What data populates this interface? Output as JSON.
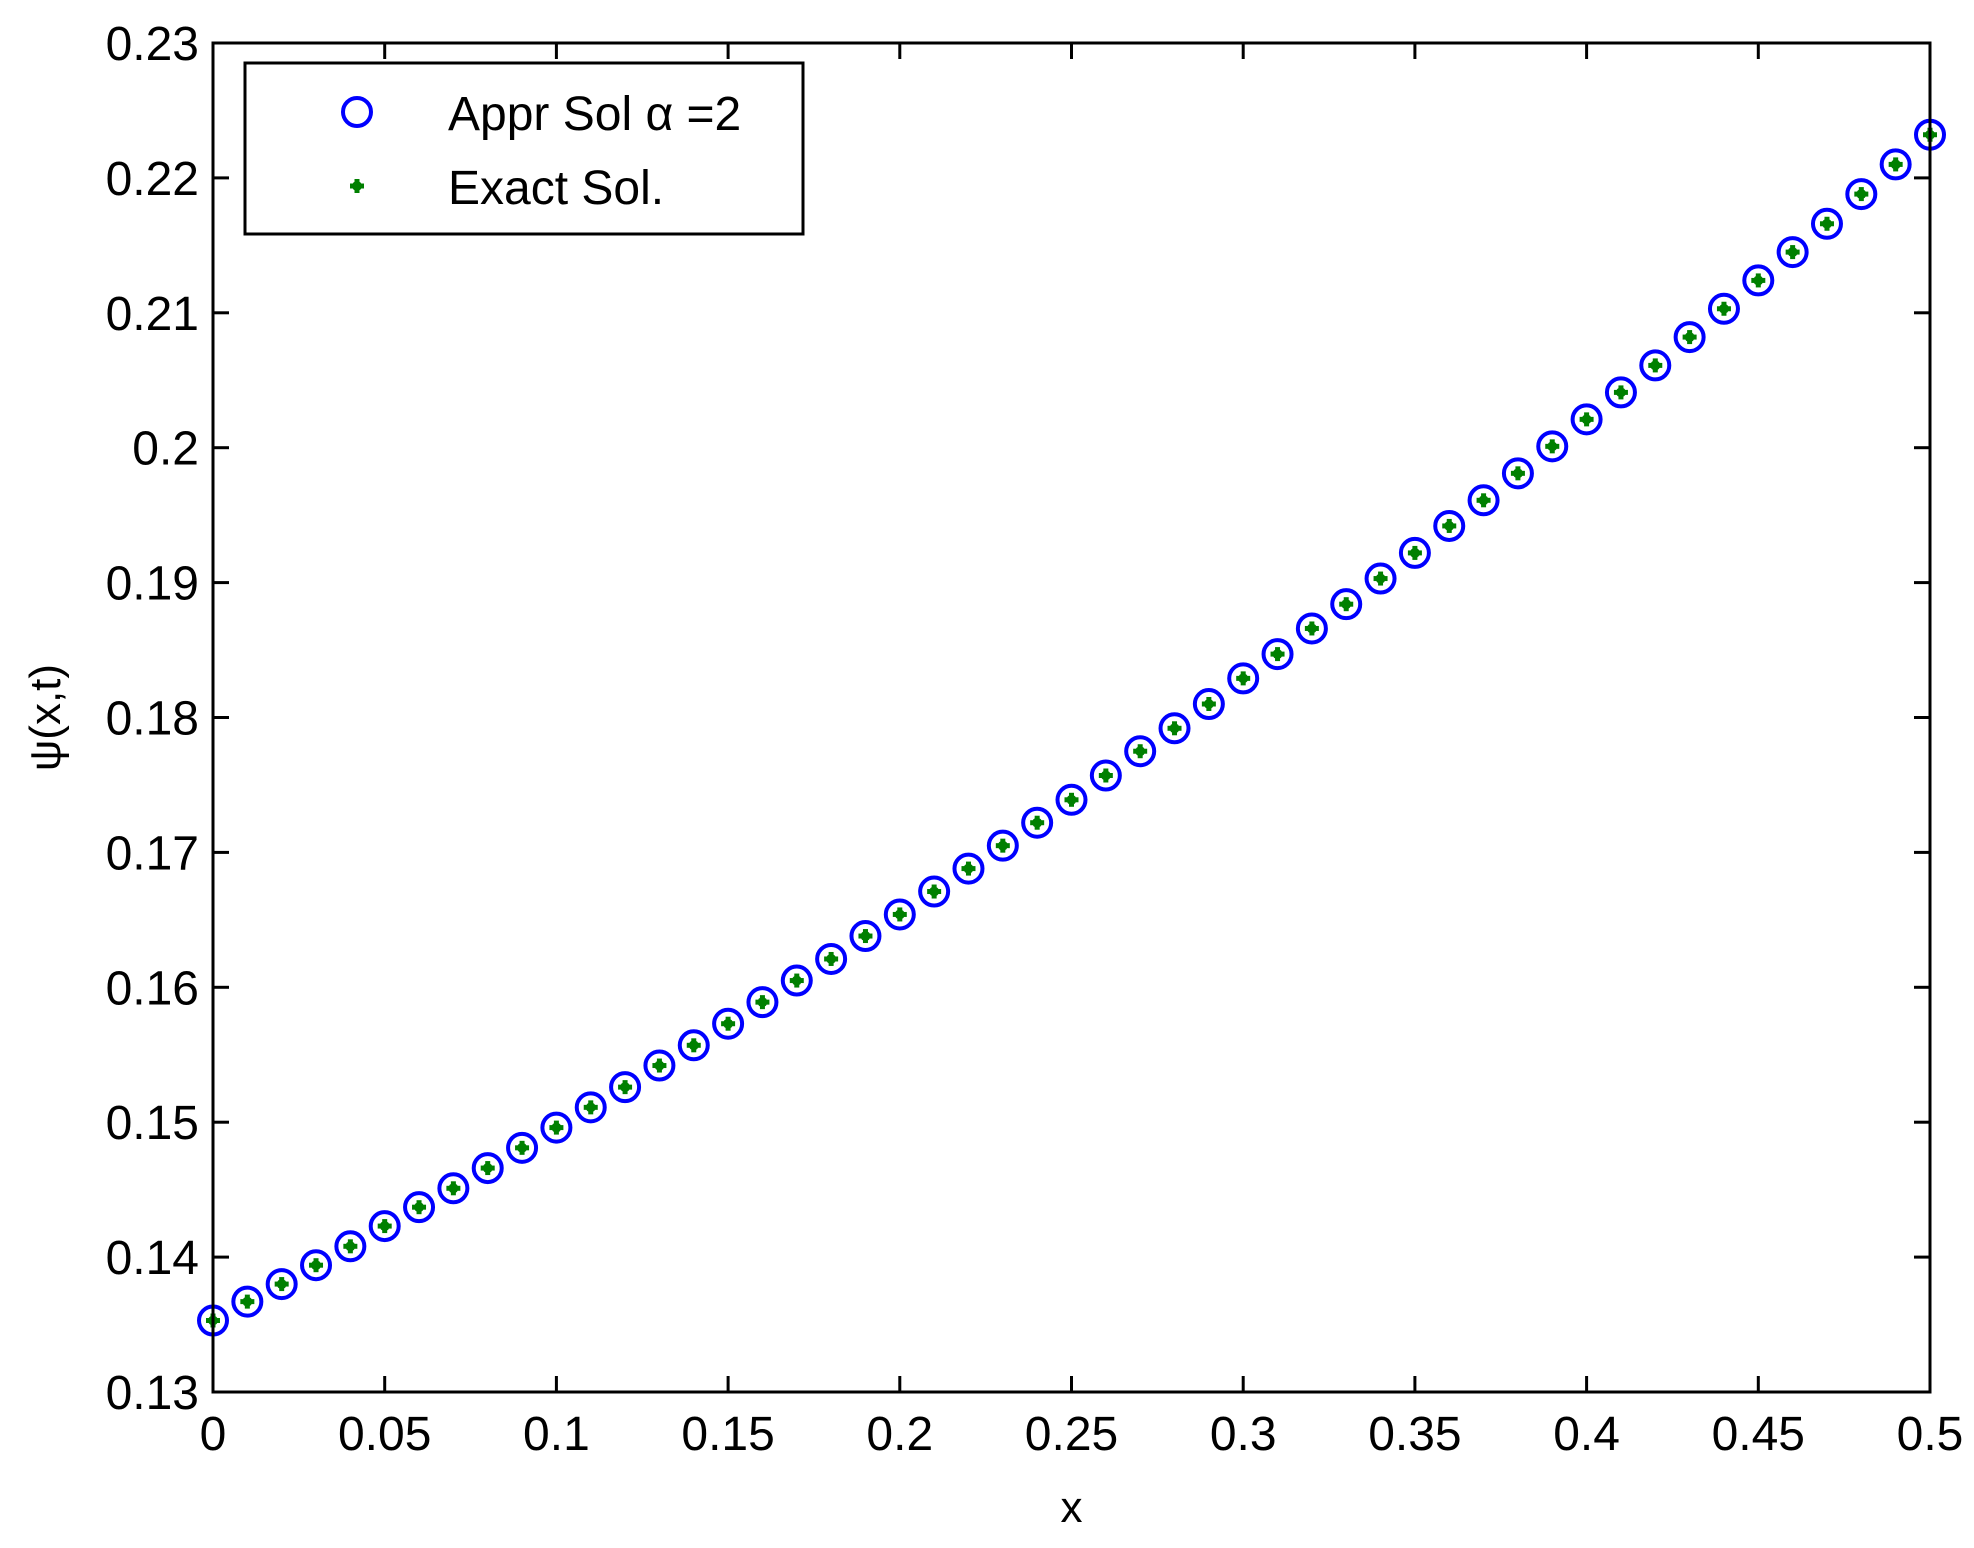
{
  "chart_data": {
    "type": "scatter",
    "xlabel": "x",
    "ylabel": "ψ(x,t)",
    "xlim": [
      0,
      0.5
    ],
    "ylim": [
      0.13,
      0.23
    ],
    "xticks": [
      "0",
      "0.05",
      "0.1",
      "0.15",
      "0.2",
      "0.25",
      "0.3",
      "0.35",
      "0.4",
      "0.45",
      "0.5"
    ],
    "yticks": [
      "0.13",
      "0.14",
      "0.15",
      "0.16",
      "0.17",
      "0.18",
      "0.19",
      "0.2",
      "0.21",
      "0.22",
      "0.23"
    ],
    "grid": false,
    "legend_position": "top-left",
    "x": [
      0,
      0.01,
      0.02,
      0.03,
      0.04,
      0.05,
      0.06,
      0.07,
      0.08,
      0.09,
      0.1,
      0.11,
      0.12,
      0.13,
      0.14,
      0.15,
      0.16,
      0.17,
      0.18,
      0.19,
      0.2,
      0.21,
      0.22,
      0.23,
      0.24,
      0.25,
      0.26,
      0.27,
      0.28,
      0.29,
      0.3,
      0.31,
      0.32,
      0.33,
      0.34,
      0.35,
      0.36,
      0.37,
      0.38,
      0.39,
      0.4,
      0.41,
      0.42,
      0.43,
      0.44,
      0.45,
      0.46,
      0.47,
      0.48,
      0.49,
      0.5
    ],
    "series": [
      {
        "name": "Appr Sol α =2",
        "marker": "circle",
        "color": "#0000ff",
        "values": [
          0.1353,
          0.1367,
          0.138,
          0.1394,
          0.1408,
          0.1423,
          0.1437,
          0.1451,
          0.1466,
          0.1481,
          0.1496,
          0.1511,
          0.1526,
          0.1542,
          0.1557,
          0.1573,
          0.1589,
          0.1605,
          0.1621,
          0.1638,
          0.1654,
          0.1671,
          0.1688,
          0.1705,
          0.1722,
          0.1739,
          0.1757,
          0.1775,
          0.1792,
          0.181,
          0.1829,
          0.1847,
          0.1866,
          0.1884,
          0.1903,
          0.1922,
          0.1942,
          0.1961,
          0.1981,
          0.2001,
          0.2021,
          0.2041,
          0.2061,
          0.2082,
          0.2103,
          0.2124,
          0.2145,
          0.2166,
          0.2188,
          0.221,
          0.2232
        ]
      },
      {
        "name": "Exact Sol.",
        "marker": "star",
        "color": "#008000",
        "values": [
          0.1353,
          0.1367,
          0.138,
          0.1394,
          0.1408,
          0.1423,
          0.1437,
          0.1451,
          0.1466,
          0.1481,
          0.1496,
          0.1511,
          0.1526,
          0.1542,
          0.1557,
          0.1573,
          0.1589,
          0.1605,
          0.1621,
          0.1638,
          0.1654,
          0.1671,
          0.1688,
          0.1705,
          0.1722,
          0.1739,
          0.1757,
          0.1775,
          0.1792,
          0.181,
          0.1829,
          0.1847,
          0.1866,
          0.1884,
          0.1903,
          0.1922,
          0.1942,
          0.1961,
          0.1981,
          0.2001,
          0.2021,
          0.2041,
          0.2061,
          0.2082,
          0.2103,
          0.2124,
          0.2145,
          0.2166,
          0.2188,
          0.221,
          0.2232
        ]
      }
    ]
  }
}
